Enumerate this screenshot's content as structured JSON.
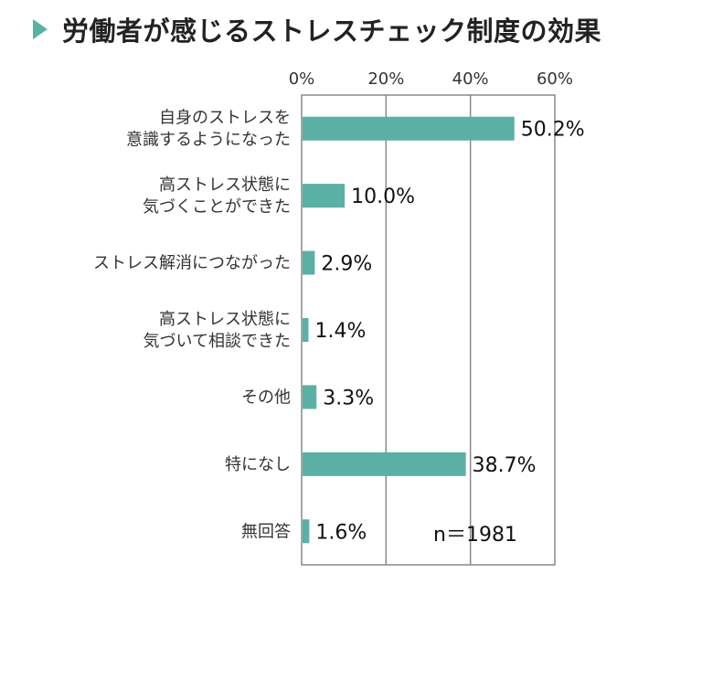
{
  "header": {
    "title": "労働者が感じるストレスチェック制度の効果"
  },
  "colors": {
    "accent": "#5bb0a5",
    "bar": "#5bb0a5",
    "grid": "#888888"
  },
  "chart_data": {
    "type": "bar",
    "orientation": "horizontal",
    "title": "労働者が感じるストレスチェック制度の効果",
    "categories": [
      [
        "自身のストレスを",
        "意識するようになった"
      ],
      [
        "高ストレス状態に",
        "気づくことができた"
      ],
      [
        "ストレス解消につながった"
      ],
      [
        "高ストレス状態に",
        "気づいて相談できた"
      ],
      [
        "その他"
      ],
      [
        "特になし"
      ],
      [
        "無回答"
      ]
    ],
    "values": [
      50.2,
      10.0,
      2.9,
      1.4,
      3.3,
      38.7,
      1.6
    ],
    "value_labels": [
      "50.2%",
      "10.0%",
      "2.9%",
      "1.4%",
      "3.3%",
      "38.7%",
      "1.6%"
    ],
    "xlim": [
      0,
      60
    ],
    "xticks": [
      0,
      20,
      40,
      60
    ],
    "xtick_labels": [
      "0%",
      "20%",
      "40%",
      "60%"
    ],
    "axis_position": "top",
    "grid": true,
    "annotation": "n＝1981"
  }
}
